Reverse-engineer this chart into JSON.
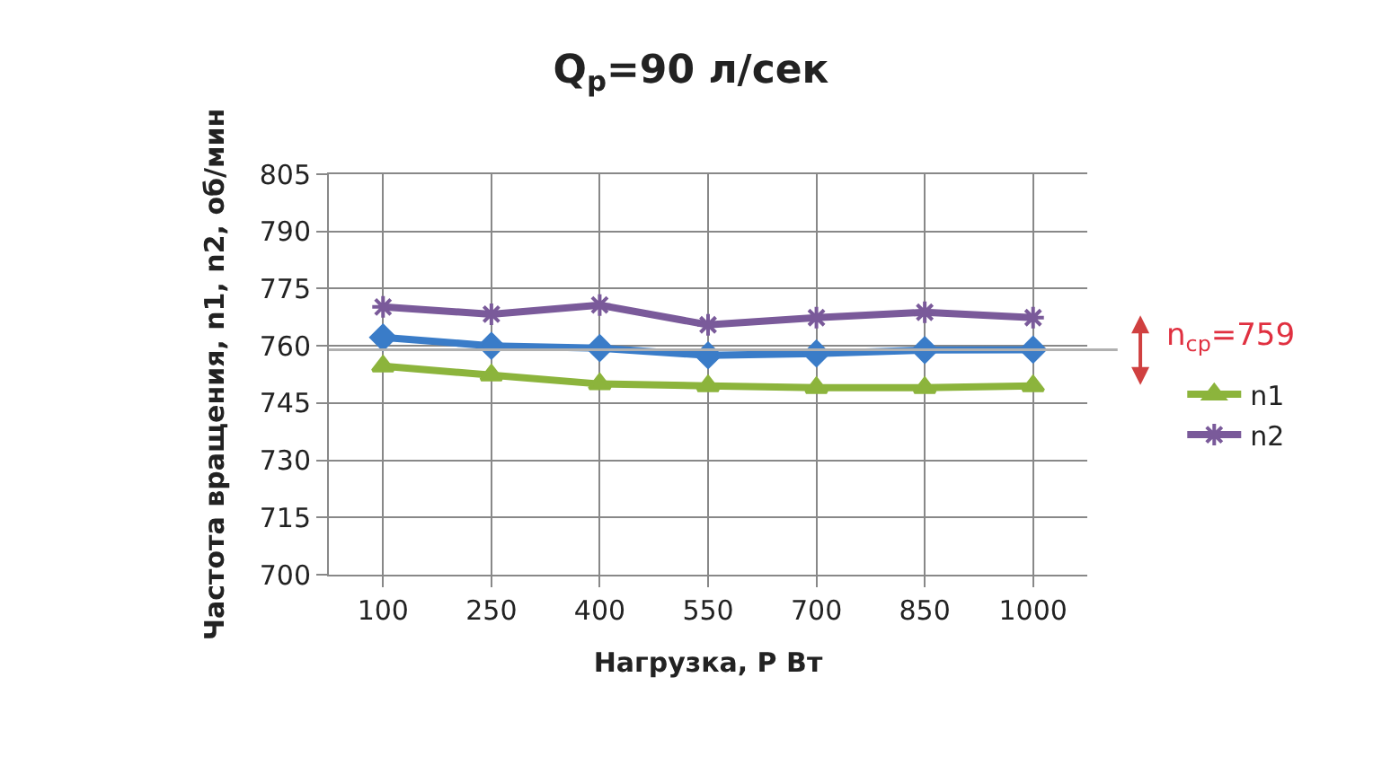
{
  "chart_data": {
    "type": "line",
    "title": "Q$_{р}$=90 л/сек",
    "xlabel": "Нагрузка, Р Вт",
    "ylabel": "Частота вращения, n1, n2, об/мин",
    "categories": [
      "100",
      "250",
      "400",
      "550",
      "700",
      "850",
      "1000"
    ],
    "series": [
      {
        "name": "n1",
        "color": "#8cb43c",
        "marker": "triangle",
        "values": [
          754.7,
          752.3,
          750,
          749.5,
          749,
          749,
          749.5
        ]
      },
      {
        "name": "n2",
        "color": "#7a5a9a",
        "marker": "cross",
        "values": [
          770.2,
          768.3,
          770.7,
          765.5,
          767.4,
          768.8,
          767.4
        ]
      },
      {
        "color": "#3a7cc8",
        "marker": "diamond",
        "values": [
          762.2,
          760,
          759.4,
          757.5,
          758,
          758.9,
          759
        ]
      }
    ],
    "ylim": [
      700,
      805
    ],
    "yticks": [
      700,
      715,
      730,
      745,
      760,
      775,
      790,
      805
    ],
    "grid": true,
    "legend": "right",
    "ref_lines": [
      {
        "axis": "y",
        "value": 759,
        "label": "n$_{ср}$=759",
        "color": "#b0b0b0"
      }
    ]
  }
}
